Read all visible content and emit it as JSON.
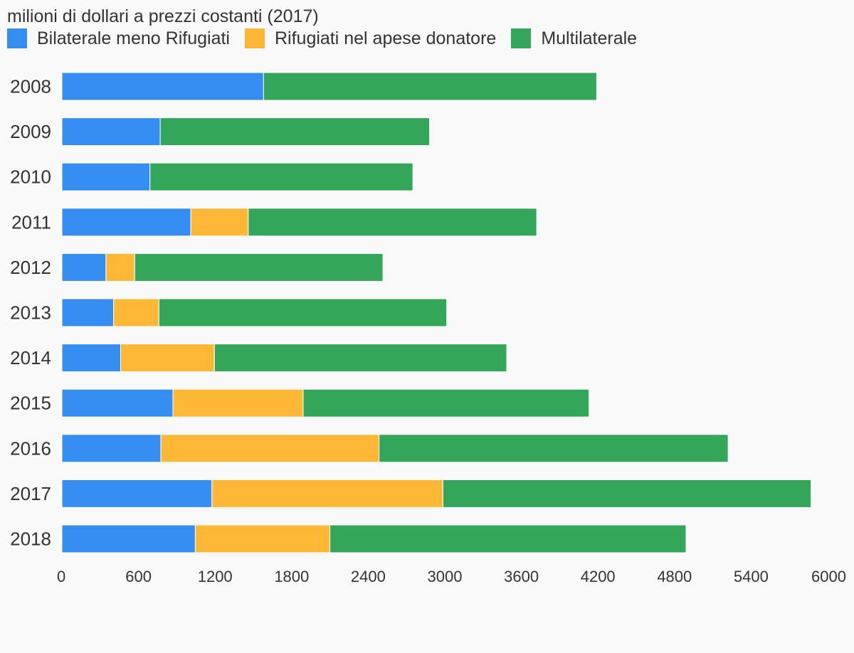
{
  "title": "milioni di dollari a prezzi costanti (2017)",
  "chart_data": {
    "type": "bar",
    "orientation": "horizontal",
    "stacked": true,
    "title": "milioni di dollari a prezzi costanti (2017)",
    "categories": [
      "2008",
      "2009",
      "2010",
      "2011",
      "2012",
      "2013",
      "2014",
      "2015",
      "2016",
      "2017",
      "2018"
    ],
    "series": [
      {
        "name": "Bilaterale meno Rifugiati",
        "color": "#348ef0",
        "values": [
          1580,
          770,
          690,
          1010,
          345,
          405,
          460,
          870,
          775,
          1175,
          1045
        ]
      },
      {
        "name": "Rifugiati nel apese donatore",
        "color": "#ffb836",
        "values": [
          0,
          0,
          0,
          450,
          225,
          355,
          735,
          1020,
          1710,
          1810,
          1055
        ]
      },
      {
        "name": "Multilaterale",
        "color": "#33a65a",
        "values": [
          2610,
          2110,
          2060,
          2260,
          1945,
          2255,
          2290,
          2240,
          2735,
          2885,
          2790
        ]
      }
    ],
    "xlim": [
      0,
      6000
    ],
    "xticks": [
      0,
      600,
      1200,
      1800,
      2400,
      3000,
      3600,
      4200,
      4800,
      5400,
      6000
    ],
    "grid": false,
    "legend_position": "top-left"
  }
}
